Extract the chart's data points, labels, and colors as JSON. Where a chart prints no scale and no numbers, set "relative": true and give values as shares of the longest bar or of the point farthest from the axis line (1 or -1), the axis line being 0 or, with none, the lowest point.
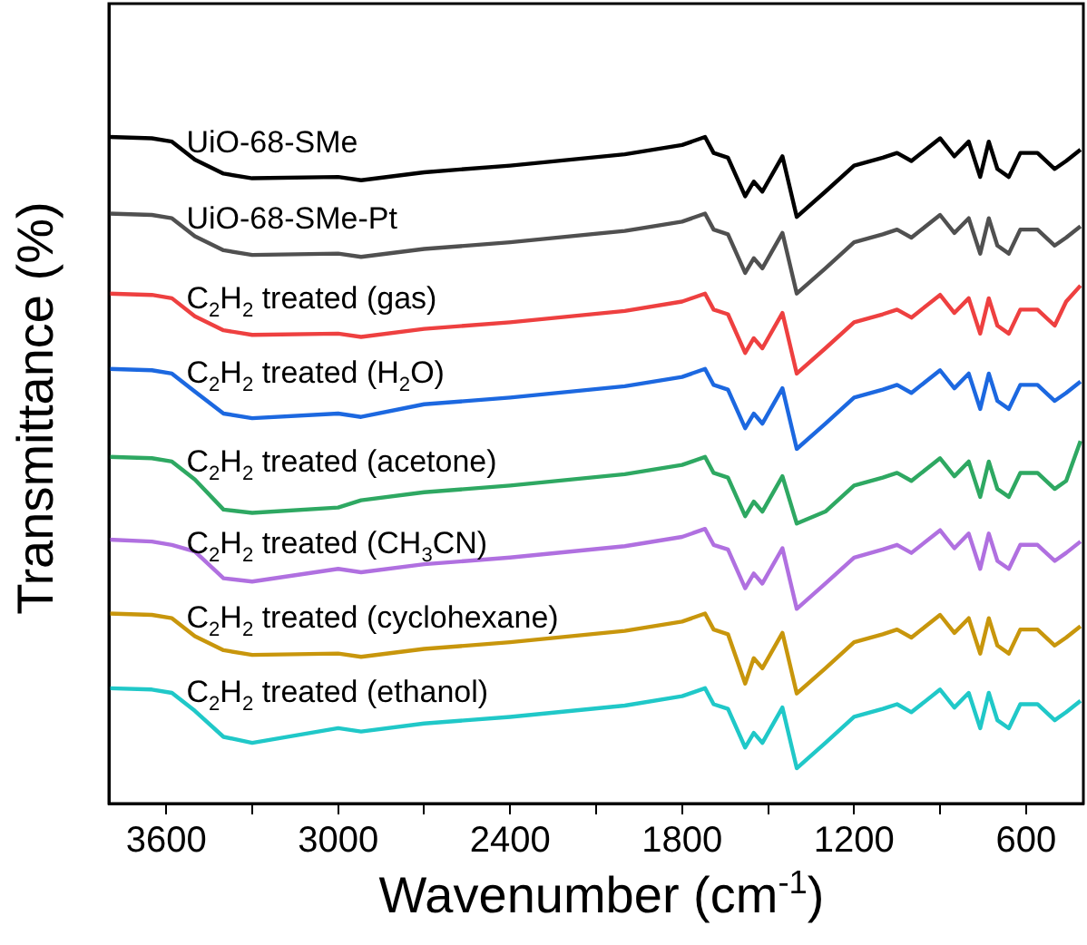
{
  "chart_data": {
    "type": "line",
    "relative": true,
    "xlabel": "Wavenumber (cm$^{-1}$)",
    "ylabel": "Transmittance (%)",
    "xlim": [
      3800,
      400
    ],
    "xticks": [
      3600,
      {
        "value": 3300,
        "label": null
      },
      3000,
      {
        "value": 2700,
        "label": null
      },
      2400,
      {
        "value": 2100,
        "label": null
      },
      1800,
      {
        "value": 1500,
        "label": null
      },
      1200,
      {
        "value": 900,
        "label": null
      },
      600
    ],
    "x": [
      3800,
      3650,
      3580,
      3500,
      3400,
      3300,
      3000,
      2920,
      2700,
      2400,
      2000,
      1800,
      1720,
      1690,
      1640,
      1580,
      1550,
      1520,
      1450,
      1400,
      1300,
      1200,
      1100,
      1050,
      1000,
      900,
      850,
      800,
      760,
      730,
      700,
      660,
      620,
      560,
      500,
      460,
      410
    ],
    "series": [
      {
        "name": "UiO-68-SMe",
        "color": "#000000",
        "values": [
          1,
          0.998,
          0.993,
          0.966,
          0.945,
          0.938,
          0.94,
          0.935,
          0.947,
          0.957,
          0.974,
          0.988,
          1,
          0.976,
          0.969,
          0.911,
          0.933,
          0.918,
          0.971,
          0.88,
          0.918,
          0.957,
          0.969,
          0.976,
          0.964,
          0.998,
          0.971,
          0.993,
          0.94,
          0.993,
          0.952,
          0.94,
          0.976,
          0.976,
          0.952,
          0.964,
          0.981
        ]
      },
      {
        "name": "UiO-68-SMe-Pt",
        "color": "#505050",
        "values": [
          0.885,
          0.883,
          0.878,
          0.851,
          0.83,
          0.823,
          0.825,
          0.82,
          0.832,
          0.842,
          0.859,
          0.873,
          0.885,
          0.861,
          0.854,
          0.796,
          0.818,
          0.803,
          0.856,
          0.765,
          0.803,
          0.842,
          0.854,
          0.861,
          0.849,
          0.883,
          0.856,
          0.878,
          0.825,
          0.878,
          0.837,
          0.825,
          0.861,
          0.861,
          0.837,
          0.849,
          0.866
        ]
      },
      {
        "name": "C$_{2}$H$_{2}$ treated (gas)",
        "color": "#ee4040",
        "values": [
          0.765,
          0.763,
          0.758,
          0.731,
          0.71,
          0.703,
          0.705,
          0.7,
          0.712,
          0.722,
          0.739,
          0.753,
          0.765,
          0.741,
          0.734,
          0.676,
          0.698,
          0.683,
          0.736,
          0.645,
          0.683,
          0.722,
          0.734,
          0.741,
          0.729,
          0.763,
          0.736,
          0.758,
          0.705,
          0.758,
          0.717,
          0.705,
          0.741,
          0.741,
          0.717,
          0.753,
          0.777
        ]
      },
      {
        "name": "C$_{2}$H$_{2}$ treated (H$_{2}$O)",
        "color": "#1c68e0",
        "values": [
          0.652,
          0.65,
          0.645,
          0.618,
          0.585,
          0.578,
          0.585,
          0.58,
          0.599,
          0.609,
          0.626,
          0.64,
          0.652,
          0.628,
          0.621,
          0.563,
          0.585,
          0.57,
          0.623,
          0.532,
          0.57,
          0.609,
          0.621,
          0.628,
          0.616,
          0.65,
          0.623,
          0.645,
          0.592,
          0.645,
          0.604,
          0.592,
          0.628,
          0.628,
          0.604,
          0.616,
          0.633
        ]
      },
      {
        "name": "C$_{2}$H$_{2}$ treated (acetone)",
        "color": "#2ea862",
        "values": [
          0.52,
          0.518,
          0.513,
          0.486,
          0.441,
          0.436,
          0.444,
          0.455,
          0.467,
          0.477,
          0.494,
          0.508,
          0.52,
          0.496,
          0.489,
          0.431,
          0.453,
          0.438,
          0.491,
          0.42,
          0.438,
          0.477,
          0.489,
          0.496,
          0.484,
          0.518,
          0.491,
          0.513,
          0.46,
          0.513,
          0.472,
          0.46,
          0.496,
          0.496,
          0.472,
          0.484,
          0.544
        ]
      },
      {
        "name": "C$_{2}$H$_{2}$ treated (CH$_{3}$CN)",
        "color": "#b070e0",
        "values": [
          0.396,
          0.393,
          0.388,
          0.378,
          0.338,
          0.333,
          0.352,
          0.347,
          0.359,
          0.369,
          0.386,
          0.4,
          0.412,
          0.388,
          0.381,
          0.323,
          0.345,
          0.33,
          0.383,
          0.292,
          0.33,
          0.369,
          0.381,
          0.388,
          0.376,
          0.41,
          0.383,
          0.405,
          0.352,
          0.405,
          0.364,
          0.352,
          0.388,
          0.388,
          0.364,
          0.376,
          0.393
        ]
      },
      {
        "name": "C$_{2}$H$_{2}$ treated (cyclohexane)",
        "color": "#c8960c",
        "values": [
          0.285,
          0.283,
          0.278,
          0.251,
          0.23,
          0.223,
          0.225,
          0.22,
          0.232,
          0.242,
          0.259,
          0.273,
          0.285,
          0.261,
          0.254,
          0.18,
          0.218,
          0.203,
          0.256,
          0.165,
          0.203,
          0.242,
          0.254,
          0.261,
          0.249,
          0.283,
          0.256,
          0.278,
          0.225,
          0.278,
          0.237,
          0.225,
          0.261,
          0.261,
          0.237,
          0.249,
          0.266
        ]
      },
      {
        "name": "C$_{2}$H$_{2}$ treated (ethanol)",
        "color": "#20c8c8",
        "values": [
          0.173,
          0.171,
          0.166,
          0.139,
          0.1,
          0.091,
          0.113,
          0.108,
          0.12,
          0.13,
          0.147,
          0.161,
          0.173,
          0.149,
          0.142,
          0.084,
          0.106,
          0.091,
          0.144,
          0.053,
          0.091,
          0.13,
          0.142,
          0.149,
          0.137,
          0.171,
          0.144,
          0.166,
          0.113,
          0.166,
          0.125,
          0.113,
          0.149,
          0.149,
          0.125,
          0.137,
          0.154
        ]
      }
    ]
  }
}
